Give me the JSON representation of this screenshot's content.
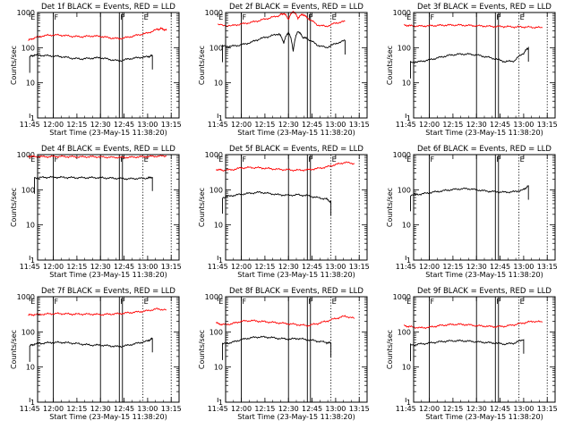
{
  "figure": {
    "ylabel": "Counts/sec",
    "xlabel": "Start Time (23-May-15 11:38:20)"
  },
  "chart_data": [
    {
      "type": "line",
      "title": "Det 1f BLACK = Events, RED = LLD",
      "x_ticks": [
        "11:45",
        "12:00",
        "12:15",
        "12:30",
        "12:45",
        "13:00",
        "13:15"
      ],
      "y_ticks": [
        "1",
        "10",
        "100",
        "1000"
      ],
      "ylim": [
        1,
        1000
      ],
      "yscale": "log",
      "markers": {
        "solid": [
          12.0,
          12.5,
          12.7,
          12.733
        ],
        "dotted": [
          12.95,
          13.25
        ],
        "labels": [
          {
            "x": 11.75,
            "text": "E"
          },
          {
            "x": 12.0,
            "text": "F"
          },
          {
            "x": 12.7,
            "text": "F"
          },
          {
            "x": 12.95,
            "text": "E"
          }
        ]
      },
      "series": [
        {
          "color": "#ff0000",
          "x": [
            11.733,
            11.8,
            11.9,
            12.0,
            12.1,
            12.2,
            12.3,
            12.4,
            12.5,
            12.6,
            12.7,
            12.8,
            12.9,
            13.0,
            13.1,
            13.15,
            13.2
          ],
          "values": [
            160,
            190,
            220,
            230,
            225,
            210,
            205,
            215,
            210,
            190,
            180,
            200,
            230,
            260,
            330,
            350,
            310
          ]
        },
        {
          "color": "#000000",
          "x": [
            11.75,
            11.8,
            11.9,
            12.0,
            12.1,
            12.2,
            12.3,
            12.4,
            12.5,
            12.6,
            12.7,
            12.8,
            12.9,
            13.0,
            13.05
          ],
          "values": [
            55,
            62,
            60,
            58,
            55,
            50,
            48,
            50,
            52,
            46,
            42,
            48,
            52,
            55,
            60
          ]
        }
      ]
    },
    {
      "type": "line",
      "title": "Det 2f BLACK = Events, RED = LLD",
      "x_ticks": [
        "11:45",
        "12:00",
        "12:15",
        "12:30",
        "12:45",
        "13:00",
        "13:15"
      ],
      "y_ticks": [
        "1",
        "10",
        "100",
        "1000"
      ],
      "ylim": [
        1,
        1000
      ],
      "yscale": "log",
      "markers": {
        "solid": [
          12.0,
          12.5,
          12.7,
          12.733
        ],
        "dotted": [
          12.95,
          13.25
        ],
        "labels": [
          {
            "x": 11.75,
            "text": "E"
          },
          {
            "x": 12.0,
            "text": "F"
          },
          {
            "x": 12.7,
            "text": "F"
          },
          {
            "x": 12.95,
            "text": "E"
          }
        ]
      },
      "series": [
        {
          "color": "#ff0000",
          "x": [
            11.75,
            11.9,
            12.0,
            12.1,
            12.2,
            12.3,
            12.4,
            12.45,
            12.5,
            12.55,
            12.6,
            12.65,
            12.7,
            12.8,
            12.9,
            13.0,
            13.1
          ],
          "values": [
            450,
            420,
            470,
            520,
            600,
            700,
            820,
            950,
            650,
            1100,
            700,
            900,
            700,
            450,
            400,
            500,
            560
          ]
        },
        {
          "color": "#000000",
          "x": [
            11.8,
            11.9,
            12.0,
            12.1,
            12.2,
            12.3,
            12.4,
            12.45,
            12.5,
            12.55,
            12.6,
            12.65,
            12.7,
            12.8,
            12.9,
            13.0,
            13.1
          ],
          "values": [
            110,
            110,
            120,
            140,
            180,
            210,
            250,
            140,
            280,
            80,
            300,
            200,
            180,
            120,
            100,
            130,
            160
          ]
        }
      ]
    },
    {
      "type": "line",
      "title": "Det 3f BLACK = Events, RED = LLD",
      "x_ticks": [
        "11:45",
        "12:00",
        "12:15",
        "12:30",
        "12:45",
        "13:00",
        "13:15"
      ],
      "y_ticks": [
        "1",
        "10",
        "100",
        "1000"
      ],
      "ylim": [
        1,
        1000
      ],
      "yscale": "log",
      "markers": {
        "solid": [
          12.0,
          12.5,
          12.7,
          12.733
        ],
        "dotted": [
          12.95,
          13.25
        ],
        "labels": [
          {
            "x": 11.75,
            "text": "E"
          },
          {
            "x": 12.0,
            "text": "F"
          },
          {
            "x": 12.7,
            "text": "F"
          },
          {
            "x": 12.95,
            "text": "E"
          }
        ]
      },
      "series": [
        {
          "color": "#ff0000",
          "x": [
            11.733,
            11.8,
            11.9,
            12.0,
            12.1,
            12.2,
            12.3,
            12.4,
            12.5,
            12.6,
            12.7,
            12.8,
            12.9,
            13.0,
            13.1,
            13.2
          ],
          "values": [
            440,
            420,
            410,
            420,
            430,
            440,
            440,
            430,
            420,
            410,
            400,
            400,
            390,
            390,
            380,
            370
          ]
        },
        {
          "color": "#000000",
          "x": [
            11.8,
            11.9,
            12.0,
            12.1,
            12.2,
            12.3,
            12.4,
            12.5,
            12.6,
            12.7,
            12.8,
            12.9,
            13.0,
            13.05
          ],
          "values": [
            38,
            40,
            45,
            52,
            60,
            65,
            66,
            62,
            55,
            48,
            40,
            42,
            70,
            100
          ]
        }
      ]
    },
    {
      "type": "line",
      "title": "Det 4f BLACK = Events, RED = LLD",
      "x_ticks": [
        "11:45",
        "12:00",
        "12:15",
        "12:30",
        "12:45",
        "13:00",
        "13:15"
      ],
      "y_ticks": [
        "1",
        "10",
        "100",
        "1000"
      ],
      "ylim": [
        1,
        1000
      ],
      "yscale": "log",
      "markers": {
        "solid": [
          12.0,
          12.5,
          12.7,
          12.733
        ],
        "dotted": [
          12.95,
          13.25
        ],
        "labels": [
          {
            "x": 11.75,
            "text": "E"
          },
          {
            "x": 12.0,
            "text": "F"
          },
          {
            "x": 12.7,
            "text": "F"
          },
          {
            "x": 12.95,
            "text": "E"
          }
        ]
      },
      "series": [
        {
          "color": "#ff0000",
          "x": [
            11.733,
            11.8,
            11.9,
            12.0,
            12.1,
            12.2,
            12.3,
            12.4,
            12.5,
            12.6,
            12.7,
            12.8,
            12.9,
            13.0,
            13.1,
            13.2
          ],
          "values": [
            900,
            880,
            870,
            880,
            880,
            870,
            860,
            870,
            860,
            840,
            830,
            840,
            860,
            880,
            900,
            920
          ]
        },
        {
          "color": "#000000",
          "x": [
            11.8,
            11.9,
            12.0,
            12.1,
            12.2,
            12.3,
            12.4,
            12.5,
            12.6,
            12.7,
            12.8,
            12.9,
            13.0,
            13.05
          ],
          "values": [
            220,
            225,
            228,
            225,
            222,
            220,
            222,
            220,
            215,
            210,
            205,
            210,
            215,
            230
          ]
        }
      ]
    },
    {
      "type": "line",
      "title": "Det 5f BLACK = Events, RED = LLD",
      "x_ticks": [
        "11:45",
        "12:00",
        "12:15",
        "12:30",
        "12:45",
        "13:00",
        "13:15"
      ],
      "y_ticks": [
        "1",
        "10",
        "100",
        "1000"
      ],
      "ylim": [
        1,
        1000
      ],
      "yscale": "log",
      "markers": {
        "solid": [
          12.0,
          12.5,
          12.7,
          12.733
        ],
        "dotted": [
          12.95,
          13.25
        ],
        "labels": [
          {
            "x": 11.75,
            "text": "E"
          },
          {
            "x": 12.0,
            "text": "F"
          },
          {
            "x": 12.7,
            "text": "F"
          },
          {
            "x": 12.95,
            "text": "E"
          }
        ]
      },
      "series": [
        {
          "color": "#ff0000",
          "x": [
            11.733,
            11.8,
            11.9,
            12.0,
            12.1,
            12.2,
            12.3,
            12.4,
            12.5,
            12.6,
            12.7,
            12.8,
            12.9,
            13.0,
            13.1,
            13.2
          ],
          "values": [
            380,
            360,
            370,
            420,
            430,
            420,
            400,
            380,
            370,
            360,
            370,
            400,
            440,
            520,
            600,
            560
          ]
        },
        {
          "color": "#000000",
          "x": [
            11.8,
            11.9,
            12.0,
            12.1,
            12.2,
            12.3,
            12.4,
            12.5,
            12.6,
            12.7,
            12.8,
            12.9,
            12.95
          ],
          "values": [
            60,
            68,
            75,
            80,
            85,
            78,
            72,
            70,
            72,
            68,
            60,
            55,
            45
          ]
        }
      ]
    },
    {
      "type": "line",
      "title": "Det 6f BLACK = Events, RED = LLD",
      "x_ticks": [
        "11:45",
        "12:00",
        "12:15",
        "12:30",
        "12:45",
        "13:00",
        "13:15"
      ],
      "y_ticks": [
        "1",
        "10",
        "100",
        "1000"
      ],
      "ylim": [
        1,
        1000
      ],
      "yscale": "log",
      "markers": {
        "solid": [
          12.0,
          12.5,
          12.7,
          12.733
        ],
        "dotted": [
          12.95,
          13.25
        ],
        "labels": [
          {
            "x": 11.75,
            "text": "E"
          },
          {
            "x": 12.0,
            "text": "F"
          },
          {
            "x": 12.7,
            "text": "F"
          },
          {
            "x": 12.95,
            "text": "E"
          }
        ]
      },
      "series": [
        {
          "color": "#000000",
          "x": [
            11.8,
            11.9,
            12.0,
            12.1,
            12.2,
            12.3,
            12.4,
            12.5,
            12.6,
            12.7,
            12.8,
            12.9,
            13.0,
            13.05
          ],
          "values": [
            70,
            75,
            82,
            90,
            98,
            105,
            108,
            100,
            92,
            88,
            85,
            88,
            100,
            130
          ]
        }
      ]
    },
    {
      "type": "line",
      "title": "Det 7f BLACK = Events, RED = LLD",
      "x_ticks": [
        "11:45",
        "12:00",
        "12:15",
        "12:30",
        "12:45",
        "13:00",
        "13:15"
      ],
      "y_ticks": [
        "1",
        "10",
        "100",
        "1000"
      ],
      "ylim": [
        1,
        1000
      ],
      "yscale": "log",
      "markers": {
        "solid": [
          12.0,
          12.5,
          12.7,
          12.733
        ],
        "dotted": [
          12.95,
          13.25
        ],
        "labels": [
          {
            "x": 11.75,
            "text": "E"
          },
          {
            "x": 12.0,
            "text": "F"
          },
          {
            "x": 12.7,
            "text": "F"
          },
          {
            "x": 12.95,
            "text": "E"
          }
        ]
      },
      "series": [
        {
          "color": "#ff0000",
          "x": [
            11.733,
            11.8,
            11.9,
            12.0,
            12.1,
            12.2,
            12.3,
            12.4,
            12.5,
            12.6,
            12.7,
            12.8,
            12.9,
            13.0,
            13.1,
            13.2
          ],
          "values": [
            300,
            310,
            320,
            330,
            330,
            320,
            320,
            320,
            310,
            320,
            330,
            350,
            370,
            400,
            450,
            420
          ]
        },
        {
          "color": "#000000",
          "x": [
            11.75,
            11.8,
            11.9,
            12.0,
            12.1,
            12.2,
            12.3,
            12.4,
            12.5,
            12.6,
            12.7,
            12.8,
            12.9,
            13.0,
            13.05
          ],
          "values": [
            40,
            45,
            48,
            50,
            50,
            48,
            45,
            42,
            42,
            40,
            38,
            42,
            48,
            55,
            65
          ]
        }
      ]
    },
    {
      "type": "line",
      "title": "Det 8f BLACK = Events, RED = LLD",
      "x_ticks": [
        "11:45",
        "12:00",
        "12:15",
        "12:30",
        "12:45",
        "13:00",
        "13:15"
      ],
      "y_ticks": [
        "1",
        "10",
        "100",
        "1000"
      ],
      "ylim": [
        1,
        1000
      ],
      "yscale": "log",
      "markers": {
        "solid": [
          12.0,
          12.5,
          12.7,
          12.733
        ],
        "dotted": [
          12.95,
          13.25
        ],
        "labels": [
          {
            "x": 11.75,
            "text": "E"
          },
          {
            "x": 12.0,
            "text": "F"
          },
          {
            "x": 12.7,
            "text": "F"
          },
          {
            "x": 12.95,
            "text": "E"
          }
        ]
      },
      "series": [
        {
          "color": "#ff0000",
          "x": [
            11.733,
            11.8,
            11.9,
            12.0,
            12.1,
            12.2,
            12.3,
            12.4,
            12.5,
            12.6,
            12.7,
            12.8,
            12.9,
            13.0,
            13.1,
            13.2
          ],
          "values": [
            180,
            160,
            170,
            200,
            210,
            200,
            190,
            180,
            170,
            160,
            150,
            170,
            200,
            240,
            280,
            240
          ]
        },
        {
          "color": "#000000",
          "x": [
            11.8,
            11.9,
            12.0,
            12.1,
            12.2,
            12.3,
            12.4,
            12.5,
            12.6,
            12.7,
            12.8,
            12.9,
            12.95
          ],
          "values": [
            45,
            50,
            60,
            68,
            72,
            70,
            65,
            62,
            65,
            60,
            55,
            50,
            48
          ]
        }
      ]
    },
    {
      "type": "line",
      "title": "Det 9f BLACK = Events, RED = LLD",
      "x_ticks": [
        "11:45",
        "12:00",
        "12:15",
        "12:30",
        "12:45",
        "13:00",
        "13:15"
      ],
      "y_ticks": [
        "1",
        "10",
        "100",
        "1000"
      ],
      "ylim": [
        1,
        1000
      ],
      "yscale": "log",
      "markers": {
        "solid": [
          12.0,
          12.5,
          12.7,
          12.733
        ],
        "dotted": [
          12.95,
          13.25
        ],
        "labels": [
          {
            "x": 11.75,
            "text": "E"
          },
          {
            "x": 12.0,
            "text": "F"
          },
          {
            "x": 12.7,
            "text": "F"
          },
          {
            "x": 12.95,
            "text": "E"
          }
        ]
      },
      "series": [
        {
          "color": "#ff0000",
          "x": [
            11.733,
            11.8,
            11.9,
            12.0,
            12.1,
            12.2,
            12.3,
            12.4,
            12.5,
            12.6,
            12.7,
            12.8,
            12.9,
            13.0,
            13.1,
            13.2
          ],
          "values": [
            150,
            140,
            130,
            135,
            150,
            160,
            165,
            160,
            150,
            145,
            140,
            145,
            160,
            180,
            200,
            190
          ]
        },
        {
          "color": "#000000",
          "x": [
            11.8,
            11.9,
            12.0,
            12.1,
            12.2,
            12.3,
            12.4,
            12.5,
            12.6,
            12.7,
            12.8,
            12.9,
            13.0
          ],
          "values": [
            42,
            45,
            48,
            52,
            55,
            56,
            55,
            52,
            50,
            48,
            45,
            48,
            60
          ]
        }
      ]
    }
  ]
}
